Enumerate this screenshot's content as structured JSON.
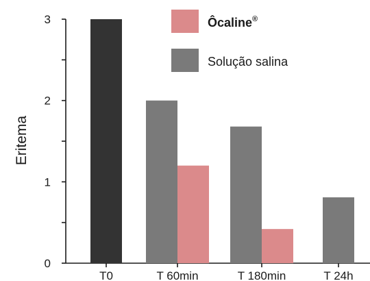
{
  "chart_data": {
    "type": "bar",
    "ylabel": "Eritema",
    "ylim": [
      0,
      3
    ],
    "yticks": [
      0,
      1,
      2,
      3
    ],
    "minor_ticks": [
      0.5,
      1.5,
      2.5
    ],
    "grid": false,
    "legend_position": "top-right",
    "categories": [
      "T0",
      "T 60min",
      "T 180min",
      "T 24h"
    ],
    "baseline": {
      "category": "T0",
      "value": 3.0,
      "color": "#333333"
    },
    "series": [
      {
        "name": "Solução salina",
        "color": "#7a7a7a",
        "values": [
          null,
          2.0,
          1.68,
          0.81
        ]
      },
      {
        "name": "Ôcaline",
        "name_sup": "®",
        "color": "#db8a8b",
        "values": [
          null,
          1.2,
          0.42,
          null
        ]
      }
    ]
  }
}
